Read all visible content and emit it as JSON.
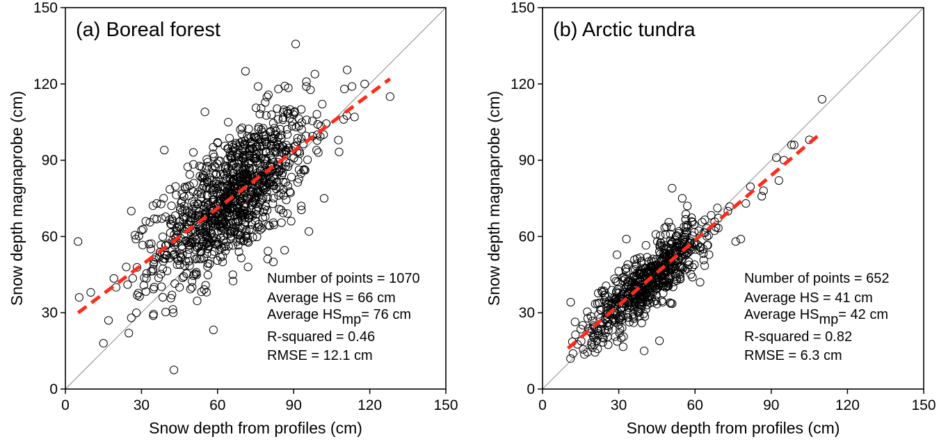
{
  "chart_data": [
    {
      "type": "scatter",
      "title": "(a) Boreal forest",
      "xlabel": "Snow depth from profiles (cm)",
      "ylabel": "Snow depth magnaprobe (cm)",
      "xlim": [
        0,
        150
      ],
      "ylim": [
        0,
        150
      ],
      "xticks": [
        "0",
        "30",
        "60",
        "90",
        "120",
        "150"
      ],
      "yticks": [
        "0",
        "30",
        "60",
        "90",
        "120",
        "150"
      ],
      "grid": false,
      "one_to_one_line": true,
      "fit_line": {
        "x": [
          5,
          128
        ],
        "y": [
          30,
          122
        ],
        "color": "#ff2a1a",
        "style": "dashed"
      },
      "point_cloud": {
        "n": 1070,
        "mean_x": 66,
        "mean_y": 76,
        "sd_x": 15,
        "r2": 0.46,
        "rmse": 12.1,
        "x_min": 5,
        "x_max": 128
      },
      "points": [
        [
          5,
          58
        ],
        [
          10,
          38
        ],
        [
          15,
          18
        ],
        [
          17,
          27
        ],
        [
          20,
          40
        ],
        [
          24,
          48
        ],
        [
          25,
          22
        ],
        [
          26,
          28
        ],
        [
          28,
          30
        ],
        [
          26,
          70
        ],
        [
          33,
          57
        ],
        [
          36,
          73
        ],
        [
          35,
          67
        ],
        [
          39,
          94
        ],
        [
          82,
          50
        ],
        [
          76,
          119
        ],
        [
          84,
          118
        ],
        [
          95,
          119
        ],
        [
          102,
          75
        ],
        [
          110,
          118
        ],
        [
          113,
          119
        ],
        [
          118,
          120
        ],
        [
          128,
          115
        ],
        [
          114,
          107
        ],
        [
          71,
          125
        ],
        [
          60,
          97
        ],
        [
          55,
          109
        ],
        [
          96,
          62
        ],
        [
          93,
          72
        ],
        [
          89,
          66
        ],
        [
          42,
          37
        ],
        [
          45,
          40
        ],
        [
          50,
          40
        ],
        [
          62,
          50
        ],
        [
          72,
          48
        ],
        [
          66,
          45
        ]
      ],
      "stats": [
        {
          "label": "Number of points = ",
          "value": "1070"
        },
        {
          "label": "Average HS = ",
          "value": "66 cm"
        },
        {
          "label": "Average HS",
          "sub": "mp",
          "rest": "= 76 cm"
        },
        {
          "label": "R-squared = ",
          "value": "0.46"
        },
        {
          "label": "RMSE = ",
          "value": "12.1 cm"
        }
      ]
    },
    {
      "type": "scatter",
      "title": "(b) Arctic tundra",
      "xlabel": "Snow depth from profiles (cm)",
      "ylabel": "Snow depth magnaprobe (cm)",
      "xlim": [
        0,
        150
      ],
      "ylim": [
        0,
        150
      ],
      "xticks": [
        "0",
        "30",
        "60",
        "90",
        "120",
        "150"
      ],
      "yticks": [
        "0",
        "30",
        "60",
        "90",
        "120",
        "150"
      ],
      "grid": false,
      "one_to_one_line": true,
      "fit_line": {
        "x": [
          10,
          110
        ],
        "y": [
          16,
          101
        ],
        "color": "#ff2a1a",
        "style": "dashed"
      },
      "point_cloud": {
        "n": 652,
        "mean_x": 41,
        "mean_y": 42,
        "sd_x": 12,
        "r2": 0.82,
        "rmse": 6.3,
        "x_min": 10,
        "x_max": 110
      },
      "points": [
        [
          11,
          12
        ],
        [
          12,
          14
        ],
        [
          110,
          114
        ],
        [
          105,
          98
        ],
        [
          99,
          96
        ],
        [
          95,
          90
        ],
        [
          93,
          82
        ],
        [
          92,
          91
        ],
        [
          98,
          96
        ],
        [
          87,
          78
        ],
        [
          80,
          73
        ],
        [
          78,
          59
        ],
        [
          76,
          58
        ],
        [
          51,
          79
        ],
        [
          55,
          75
        ],
        [
          57,
          72
        ],
        [
          33,
          59
        ],
        [
          40,
          15
        ],
        [
          46,
          19
        ],
        [
          62,
          42
        ],
        [
          59,
          44
        ],
        [
          24,
          20
        ],
        [
          20,
          25
        ]
      ],
      "stats": [
        {
          "label": "Number of points = ",
          "value": "652"
        },
        {
          "label": "Average HS = ",
          "value": "41 cm"
        },
        {
          "label": "Average HS",
          "sub": "mp",
          "rest": "= 42 cm"
        },
        {
          "label": "R-squared = ",
          "value": "0.82"
        },
        {
          "label": "RMSE = ",
          "value": "6.3 cm"
        }
      ]
    }
  ]
}
